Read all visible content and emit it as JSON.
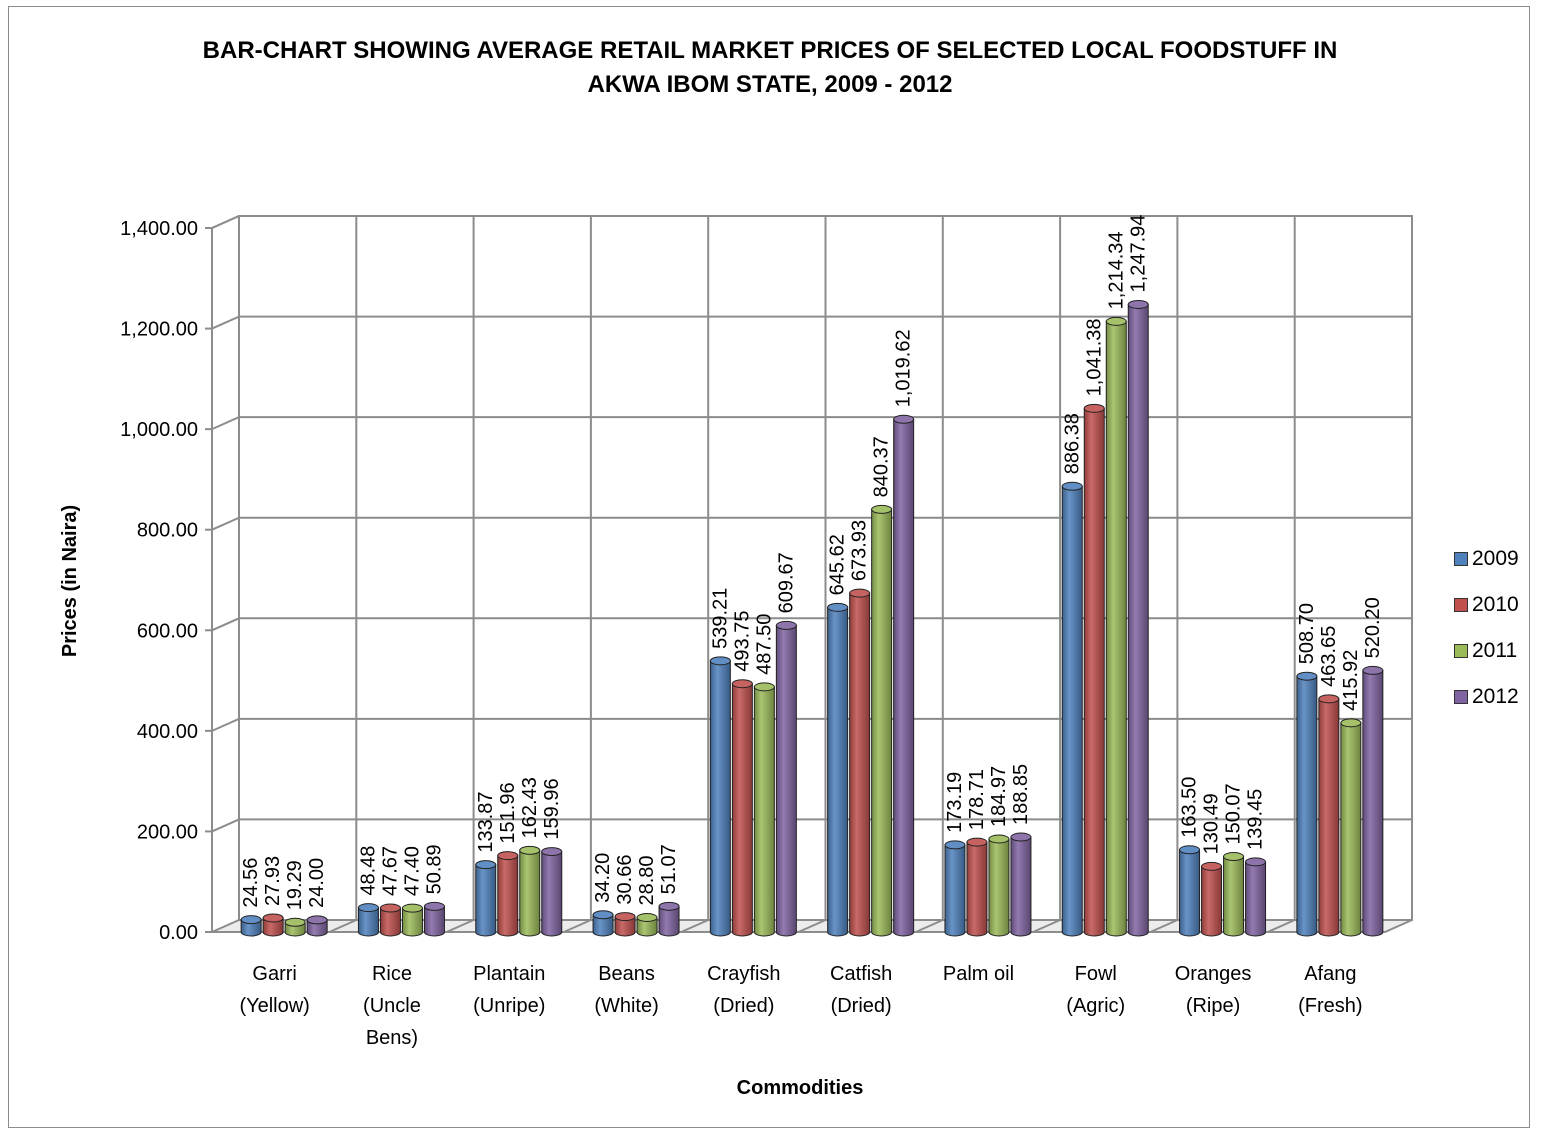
{
  "chart_data": {
    "type": "bar",
    "title_line1": "BAR-CHART SHOWING AVERAGE RETAIL MARKET PRICES OF SELECTED LOCAL FOODSTUFF IN",
    "title_line2": "AKWA IBOM STATE, 2009 - 2012",
    "xlabel": "Commodities",
    "ylabel": "Prices (in Naira)",
    "ylim": [
      0,
      1400
    ],
    "yticks": [
      "0.00",
      "200.00",
      "400.00",
      "600.00",
      "800.00",
      "1,000.00",
      "1,200.00",
      "1,400.00"
    ],
    "grid": true,
    "legend_position": "right",
    "categories": [
      [
        "Garri",
        "(Yellow)"
      ],
      [
        "Rice",
        "(Uncle",
        "Bens)"
      ],
      [
        "Plantain",
        "(Unripe)"
      ],
      [
        "Beans",
        "(White)"
      ],
      [
        "Crayfish",
        "(Dried)"
      ],
      [
        "Catfish",
        "(Dried)"
      ],
      [
        "Palm oil"
      ],
      [
        "Fowl",
        "(Agric)"
      ],
      [
        "Oranges",
        "(Ripe)"
      ],
      [
        "Afang",
        "(Fresh)"
      ]
    ],
    "series": [
      {
        "name": "2009",
        "color": "#4f81bd",
        "values": [
          24.56,
          48.48,
          133.87,
          34.2,
          539.21,
          645.62,
          173.19,
          886.38,
          163.5,
          508.7
        ],
        "labels": [
          "24.56",
          "48.48",
          "133.87",
          "34.20",
          "539.21",
          "645.62",
          "173.19",
          "886.38",
          "163.50",
          "508.70"
        ]
      },
      {
        "name": "2010",
        "color": "#c0504d",
        "values": [
          27.93,
          47.67,
          151.96,
          30.66,
          493.75,
          673.93,
          178.71,
          1041.38,
          130.49,
          463.65
        ],
        "labels": [
          "27.93",
          "47.67",
          "151.96",
          "30.66",
          "493.75",
          "673.93",
          "178.71",
          "1,041.38",
          "130.49",
          "463.65"
        ]
      },
      {
        "name": "2011",
        "color": "#9bbb59",
        "values": [
          19.29,
          47.4,
          162.43,
          28.8,
          487.5,
          840.37,
          184.97,
          1214.34,
          150.07,
          415.92
        ],
        "labels": [
          "19.29",
          "47.40",
          "162.43",
          "28.80",
          "487.50",
          "840.37",
          "184.97",
          "1,214.34",
          "150.07",
          "415.92"
        ]
      },
      {
        "name": "2012",
        "color": "#8064a2",
        "values": [
          24.0,
          50.89,
          159.96,
          51.07,
          609.67,
          1019.62,
          188.85,
          1247.94,
          139.45,
          520.2
        ],
        "labels": [
          "24.00",
          "50.89",
          "159.96",
          "51.07",
          "609.67",
          "1,019.62",
          "188.85",
          "1,247.94",
          "139.45",
          "520.20"
        ]
      }
    ]
  }
}
